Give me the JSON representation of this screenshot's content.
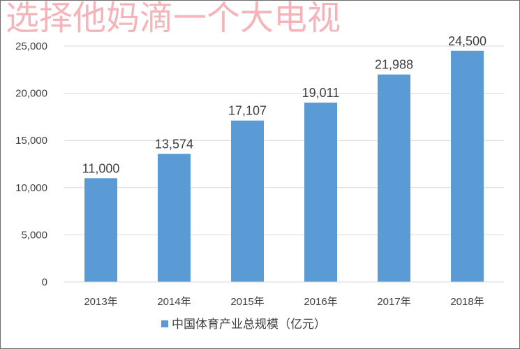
{
  "watermark": "选择他妈滴一个大电视",
  "chart_data": {
    "type": "bar",
    "categories": [
      "2013年",
      "2014年",
      "2015年",
      "2016年",
      "2017年",
      "2018年"
    ],
    "series": [
      {
        "name": "中国体育产业总规模（亿元）",
        "values": [
          11000,
          13574,
          17107,
          19011,
          21988,
          24500
        ]
      }
    ],
    "data_labels": [
      "11,000",
      "13,574",
      "17,107",
      "19,011",
      "21,988",
      "24,500"
    ],
    "yticks": [
      "0",
      "5,000",
      "10,000",
      "15,000",
      "20,000",
      "25,000"
    ],
    "ytick_values": [
      0,
      5000,
      10000,
      15000,
      20000,
      25000
    ],
    "ylim": [
      0,
      25000
    ],
    "grid": true,
    "legend": "bottom",
    "colors": {
      "bar": "#5b9bd5",
      "grid": "#d9d9d9",
      "text": "#404040"
    }
  }
}
